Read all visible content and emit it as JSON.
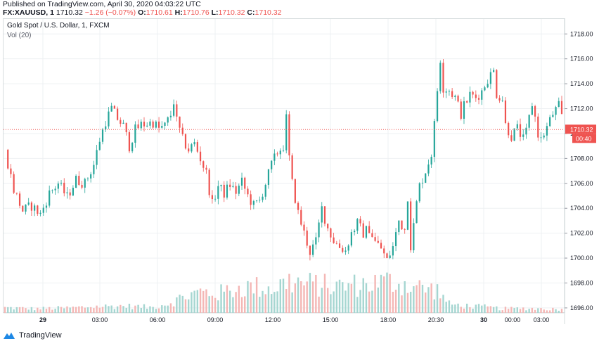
{
  "header": {
    "published": "Published on TradingView.com, April 30, 2020 04:03:22 UTC",
    "symbol": "FX:XAUUSD, 1",
    "last": "1710.32",
    "change": "−1.26 (−0.07%)",
    "o_label": "O:",
    "o_value": "1710.61",
    "h_label": "H:",
    "h_value": "1710.76",
    "l_label": "L:",
    "l_value": "1710.32",
    "c_label": "C:",
    "c_value": "1710.32"
  },
  "legend": {
    "title": "Gold Spot / U.S. Dollar, 1, FXCM",
    "volume": "Vol (20)"
  },
  "price_label": "1710.32",
  "countdown_label": "00:40",
  "footer": {
    "brand": "TradingView"
  },
  "colors": {
    "up": "#26a69a",
    "down": "#ef5350",
    "grid": "#eef0f3",
    "label_bg": "#ef5350"
  },
  "chart_data": {
    "type": "candlestick",
    "ylim": [
      1695.6,
      1719.2
    ],
    "y_ticks": [
      "1718.00",
      "1716.00",
      "1714.00",
      "1712.00",
      "1710.00",
      "1708.00",
      "1706.00",
      "1704.00",
      "1702.00",
      "1700.00",
      "1698.00",
      "1696.00"
    ],
    "x_ticks": [
      "29",
      "03:00",
      "06:00",
      "09:00",
      "12:00",
      "15:00",
      "18:00",
      "20:30",
      "30",
      "00:00",
      "03:00"
    ],
    "last_price": 1710.32,
    "close_path": [
      [
        0,
        1708.7
      ],
      [
        3,
        1705.5
      ],
      [
        6,
        1703.8
      ],
      [
        9,
        1704.2
      ],
      [
        12,
        1703.5
      ],
      [
        15,
        1705.2
      ],
      [
        18,
        1706.0
      ],
      [
        21,
        1704.9
      ],
      [
        24,
        1706.3
      ],
      [
        27,
        1706.0
      ],
      [
        30,
        1707.5
      ],
      [
        32,
        1709.5
      ],
      [
        34,
        1711.0
      ],
      [
        36,
        1712.0
      ],
      [
        38,
        1711.2
      ],
      [
        40,
        1710.6
      ],
      [
        42,
        1709.0
      ],
      [
        44,
        1710.3
      ],
      [
        46,
        1710.7
      ],
      [
        48,
        1710.8
      ],
      [
        50,
        1710.9
      ],
      [
        52,
        1710.4
      ],
      [
        54,
        1710.6
      ],
      [
        56,
        1711.5
      ],
      [
        57,
        1712.6
      ],
      [
        58,
        1711.0
      ],
      [
        60,
        1709.5
      ],
      [
        62,
        1708.7
      ],
      [
        64,
        1709.2
      ],
      [
        66,
        1708.0
      ],
      [
        68,
        1706.8
      ],
      [
        69,
        1705.5
      ],
      [
        70,
        1704.3
      ],
      [
        72,
        1705.8
      ],
      [
        74,
        1705.2
      ],
      [
        76,
        1705.9
      ],
      [
        78,
        1705.3
      ],
      [
        80,
        1706.1
      ],
      [
        82,
        1705.0
      ],
      [
        84,
        1704.2
      ],
      [
        86,
        1704.6
      ],
      [
        88,
        1706.0
      ],
      [
        90,
        1707.5
      ],
      [
        92,
        1708.5
      ],
      [
        94,
        1709.0
      ],
      [
        95,
        1711.2
      ],
      [
        96,
        1708.0
      ],
      [
        97,
        1706.0
      ],
      [
        99,
        1703.6
      ],
      [
        101,
        1702.0
      ],
      [
        103,
        1700.5
      ],
      [
        105,
        1701.3
      ],
      [
        107,
        1704.0
      ],
      [
        109,
        1702.4
      ],
      [
        111,
        1701.4
      ],
      [
        113,
        1700.9
      ],
      [
        115,
        1700.6
      ],
      [
        117,
        1702.0
      ],
      [
        119,
        1702.8
      ],
      [
        121,
        1702.0
      ],
      [
        123,
        1702.4
      ],
      [
        125,
        1701.3
      ],
      [
        127,
        1700.8
      ],
      [
        129,
        1699.8
      ],
      [
        131,
        1700.9
      ],
      [
        133,
        1703.0
      ],
      [
        135,
        1702.3
      ],
      [
        136,
        1705.0
      ],
      [
        137,
        1701.0
      ],
      [
        138,
        1702.6
      ],
      [
        139,
        1704.4
      ],
      [
        140,
        1705.8
      ],
      [
        142,
        1707.0
      ],
      [
        144,
        1708.4
      ],
      [
        145,
        1710.7
      ],
      [
        146,
        1713.5
      ],
      [
        147,
        1716.0
      ],
      [
        148,
        1713.7
      ],
      [
        150,
        1713.5
      ],
      [
        152,
        1712.9
      ],
      [
        154,
        1711.6
      ],
      [
        155,
        1712.2
      ],
      [
        157,
        1713.1
      ],
      [
        159,
        1712.9
      ],
      [
        161,
        1713.4
      ],
      [
        163,
        1714.4
      ],
      [
        165,
        1715.0
      ],
      [
        166,
        1713.2
      ],
      [
        168,
        1712.8
      ],
      [
        169,
        1710.7
      ],
      [
        171,
        1709.8
      ],
      [
        173,
        1710.4
      ],
      [
        175,
        1709.5
      ],
      [
        176,
        1710.1
      ],
      [
        178,
        1712.4
      ],
      [
        179,
        1711.3
      ],
      [
        180,
        1710.0
      ],
      [
        181,
        1709.5
      ],
      [
        183,
        1710.5
      ],
      [
        185,
        1711.6
      ],
      [
        187,
        1712.2
      ],
      [
        188,
        1711.3
      ]
    ],
    "volume_path": [
      [
        0,
        0.15
      ],
      [
        10,
        0.12
      ],
      [
        20,
        0.14
      ],
      [
        30,
        0.18
      ],
      [
        40,
        0.2
      ],
      [
        50,
        0.16
      ],
      [
        56,
        0.3
      ],
      [
        60,
        0.45
      ],
      [
        66,
        0.6
      ],
      [
        72,
        0.55
      ],
      [
        78,
        0.7
      ],
      [
        84,
        0.75
      ],
      [
        90,
        0.7
      ],
      [
        96,
        0.9
      ],
      [
        100,
        0.85
      ],
      [
        106,
        0.8
      ],
      [
        112,
        0.75
      ],
      [
        118,
        0.8
      ],
      [
        124,
        0.85
      ],
      [
        130,
        0.9
      ],
      [
        136,
        0.8
      ],
      [
        142,
        0.7
      ],
      [
        146,
        0.65
      ],
      [
        150,
        0.25
      ],
      [
        156,
        0.2
      ],
      [
        162,
        0.17
      ],
      [
        168,
        0.12
      ],
      [
        176,
        0.13
      ],
      [
        182,
        0.12
      ],
      [
        188,
        0.1
      ]
    ]
  }
}
